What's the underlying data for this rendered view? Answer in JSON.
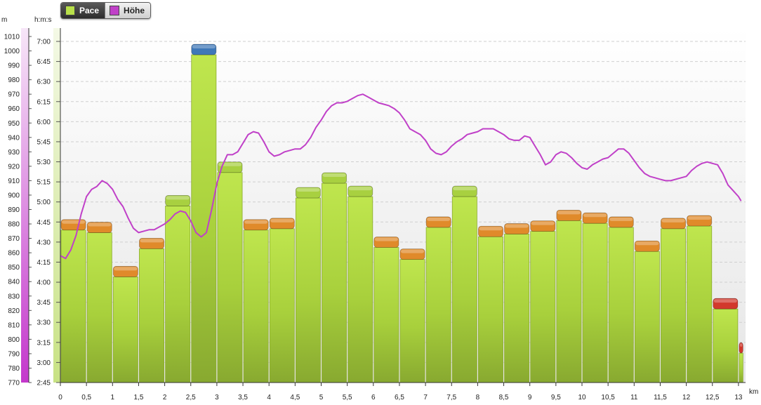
{
  "legend": {
    "items": [
      {
        "label": "Pace",
        "color": "#b8e04a",
        "active": true
      },
      {
        "label": "Höhe",
        "color": "#c040c8",
        "active": false
      }
    ]
  },
  "chart_data": {
    "type": "bar",
    "title": "",
    "x": {
      "unit": "km",
      "range": [
        0,
        13.1
      ],
      "tick_labels": [
        "0",
        "0,5",
        "1",
        "1,5",
        "2",
        "2,5",
        "3",
        "3,5",
        "4",
        "4,5",
        "5",
        "5,5",
        "6",
        "6,5",
        "7",
        "7,5",
        "8",
        "8,5",
        "9",
        "9,5",
        "10",
        "10,5",
        "11",
        "11,5",
        "12",
        "12,5",
        "13"
      ]
    },
    "y_pace": {
      "unit": "h:m:s",
      "range_seconds": [
        165,
        435
      ],
      "tick_labels": [
        "2:45",
        "3:00",
        "3:15",
        "3:30",
        "3:45",
        "4:00",
        "4:15",
        "4:30",
        "4:45",
        "5:00",
        "5:15",
        "5:30",
        "5:45",
        "6:00",
        "6:15",
        "6:30",
        "6:45",
        "7:00"
      ]
    },
    "y_elevation": {
      "unit": "m",
      "range": [
        770,
        1015
      ],
      "tick_labels": [
        "770",
        "780",
        "790",
        "800",
        "810",
        "820",
        "830",
        "840",
        "850",
        "860",
        "870",
        "880",
        "890",
        "900",
        "910",
        "920",
        "930",
        "940",
        "950",
        "960",
        "970",
        "980",
        "990",
        "1000",
        "1010"
      ]
    },
    "series": [
      {
        "name": "Pace",
        "colors": {
          "body": "#b8e04a",
          "cap_faster": "#a8d040",
          "cap_slower": "#e08a2a",
          "cap_fastest": "#3f78b8",
          "cap_slowest": "#d2382c"
        },
        "bins": [
          {
            "start": 0,
            "end": 0.5,
            "pace": "4:39",
            "cap": "slower"
          },
          {
            "start": 0.5,
            "end": 1,
            "pace": "4:37",
            "cap": "slower"
          },
          {
            "start": 1,
            "end": 1.5,
            "pace": "4:04",
            "cap": "slower"
          },
          {
            "start": 1.5,
            "end": 2,
            "pace": "4:25",
            "cap": "slower"
          },
          {
            "start": 2,
            "end": 2.5,
            "pace": "4:57",
            "cap": "faster"
          },
          {
            "start": 2.5,
            "end": 3,
            "pace": "6:50",
            "cap": "fastest"
          },
          {
            "start": 3,
            "end": 3.5,
            "pace": "5:22",
            "cap": "faster"
          },
          {
            "start": 3.5,
            "end": 4,
            "pace": "4:39",
            "cap": "slower"
          },
          {
            "start": 4,
            "end": 4.5,
            "pace": "4:40",
            "cap": "slower"
          },
          {
            "start": 4.5,
            "end": 5,
            "pace": "5:03",
            "cap": "faster"
          },
          {
            "start": 5,
            "end": 5.5,
            "pace": "5:14",
            "cap": "faster"
          },
          {
            "start": 5.5,
            "end": 6,
            "pace": "5:04",
            "cap": "faster"
          },
          {
            "start": 6,
            "end": 6.5,
            "pace": "4:26",
            "cap": "slower"
          },
          {
            "start": 6.5,
            "end": 7,
            "pace": "4:17",
            "cap": "slower"
          },
          {
            "start": 7,
            "end": 7.5,
            "pace": "4:41",
            "cap": "slower"
          },
          {
            "start": 7.5,
            "end": 8,
            "pace": "5:04",
            "cap": "faster"
          },
          {
            "start": 8,
            "end": 8.5,
            "pace": "4:34",
            "cap": "slower"
          },
          {
            "start": 8.5,
            "end": 9,
            "pace": "4:36",
            "cap": "slower"
          },
          {
            "start": 9,
            "end": 9.5,
            "pace": "4:38",
            "cap": "slower"
          },
          {
            "start": 9.5,
            "end": 10,
            "pace": "4:46",
            "cap": "slower"
          },
          {
            "start": 10,
            "end": 10.5,
            "pace": "4:44",
            "cap": "slower"
          },
          {
            "start": 10.5,
            "end": 11,
            "pace": "4:41",
            "cap": "slower"
          },
          {
            "start": 11,
            "end": 11.5,
            "pace": "4:23",
            "cap": "slower"
          },
          {
            "start": 11.5,
            "end": 12,
            "pace": "4:40",
            "cap": "slower"
          },
          {
            "start": 12,
            "end": 12.5,
            "pace": "4:42",
            "cap": "slower"
          },
          {
            "start": 12.5,
            "end": 13,
            "pace": "3:40",
            "cap": "slowest"
          },
          {
            "start": 13,
            "end": 13.1,
            "pace": "3:07",
            "cap": "slowest"
          }
        ]
      },
      {
        "name": "Höhe",
        "color": "#c040c8",
        "points": [
          [
            0,
            858
          ],
          [
            0.1,
            856
          ],
          [
            0.2,
            862
          ],
          [
            0.3,
            872
          ],
          [
            0.4,
            887
          ],
          [
            0.5,
            899
          ],
          [
            0.6,
            904
          ],
          [
            0.7,
            906
          ],
          [
            0.8,
            910
          ],
          [
            0.9,
            908
          ],
          [
            1,
            904
          ],
          [
            1.1,
            897
          ],
          [
            1.2,
            892
          ],
          [
            1.3,
            884
          ],
          [
            1.4,
            877
          ],
          [
            1.5,
            874
          ],
          [
            1.6,
            875
          ],
          [
            1.7,
            876
          ],
          [
            1.8,
            876
          ],
          [
            1.9,
            878
          ],
          [
            2,
            880
          ],
          [
            2.1,
            883
          ],
          [
            2.2,
            887
          ],
          [
            2.3,
            889
          ],
          [
            2.4,
            888
          ],
          [
            2.5,
            882
          ],
          [
            2.6,
            874
          ],
          [
            2.7,
            871
          ],
          [
            2.8,
            874
          ],
          [
            2.9,
            890
          ],
          [
            3,
            908
          ],
          [
            3.1,
            920
          ],
          [
            3.2,
            928
          ],
          [
            3.3,
            928
          ],
          [
            3.4,
            930
          ],
          [
            3.5,
            936
          ],
          [
            3.6,
            942
          ],
          [
            3.7,
            944
          ],
          [
            3.8,
            943
          ],
          [
            3.9,
            937
          ],
          [
            4,
            930
          ],
          [
            4.1,
            927
          ],
          [
            4.2,
            928
          ],
          [
            4.3,
            930
          ],
          [
            4.4,
            931
          ],
          [
            4.5,
            932
          ],
          [
            4.6,
            932
          ],
          [
            4.7,
            935
          ],
          [
            4.8,
            940
          ],
          [
            4.9,
            947
          ],
          [
            5,
            952
          ],
          [
            5.1,
            958
          ],
          [
            5.2,
            962
          ],
          [
            5.3,
            964
          ],
          [
            5.4,
            964
          ],
          [
            5.5,
            965
          ],
          [
            5.6,
            967
          ],
          [
            5.7,
            969
          ],
          [
            5.8,
            970
          ],
          [
            5.9,
            968
          ],
          [
            6,
            966
          ],
          [
            6.1,
            964
          ],
          [
            6.2,
            963
          ],
          [
            6.3,
            962
          ],
          [
            6.4,
            960
          ],
          [
            6.5,
            957
          ],
          [
            6.6,
            952
          ],
          [
            6.7,
            946
          ],
          [
            6.8,
            944
          ],
          [
            6.9,
            942
          ],
          [
            7,
            938
          ],
          [
            7.1,
            932
          ],
          [
            7.2,
            929
          ],
          [
            7.3,
            928
          ],
          [
            7.4,
            930
          ],
          [
            7.5,
            934
          ],
          [
            7.6,
            937
          ],
          [
            7.7,
            939
          ],
          [
            7.8,
            942
          ],
          [
            7.9,
            943
          ],
          [
            8,
            944
          ],
          [
            8.1,
            946
          ],
          [
            8.2,
            946
          ],
          [
            8.3,
            946
          ],
          [
            8.4,
            944
          ],
          [
            8.5,
            942
          ],
          [
            8.6,
            939
          ],
          [
            8.7,
            938
          ],
          [
            8.8,
            938
          ],
          [
            8.9,
            941
          ],
          [
            9,
            940
          ],
          [
            9.1,
            934
          ],
          [
            9.2,
            928
          ],
          [
            9.3,
            921
          ],
          [
            9.4,
            923
          ],
          [
            9.5,
            928
          ],
          [
            9.6,
            930
          ],
          [
            9.7,
            929
          ],
          [
            9.8,
            926
          ],
          [
            9.9,
            922
          ],
          [
            10,
            919
          ],
          [
            10.1,
            918
          ],
          [
            10.2,
            921
          ],
          [
            10.3,
            923
          ],
          [
            10.4,
            925
          ],
          [
            10.5,
            926
          ],
          [
            10.6,
            929
          ],
          [
            10.7,
            932
          ],
          [
            10.8,
            932
          ],
          [
            10.9,
            929
          ],
          [
            11,
            924
          ],
          [
            11.1,
            919
          ],
          [
            11.2,
            915
          ],
          [
            11.3,
            913
          ],
          [
            11.4,
            912
          ],
          [
            11.5,
            911
          ],
          [
            11.6,
            910
          ],
          [
            11.7,
            910
          ],
          [
            11.8,
            911
          ],
          [
            11.9,
            912
          ],
          [
            12,
            913
          ],
          [
            12.1,
            917
          ],
          [
            12.2,
            920
          ],
          [
            12.3,
            922
          ],
          [
            12.4,
            923
          ],
          [
            12.5,
            922
          ],
          [
            12.6,
            921
          ],
          [
            12.7,
            915
          ],
          [
            12.8,
            907
          ],
          [
            12.9,
            903
          ],
          [
            13,
            899
          ],
          [
            13.05,
            896
          ]
        ]
      }
    ],
    "legend_position": "top-left",
    "grid": true
  }
}
